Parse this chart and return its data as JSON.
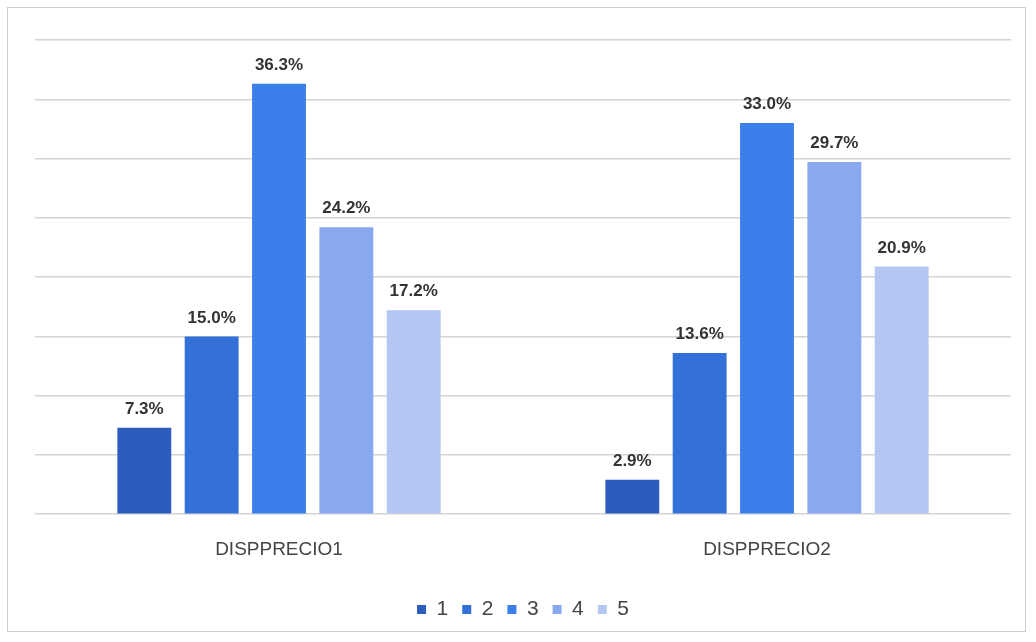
{
  "chart_data": {
    "type": "bar",
    "categories": [
      "DISPPRECIO1",
      "DISPPRECIO2"
    ],
    "series": [
      {
        "name": "1",
        "color": "#2d5cbf",
        "values": [
          7.3,
          2.9
        ],
        "value_labels": [
          "7.3%",
          "2.9%"
        ]
      },
      {
        "name": "2",
        "color": "#3371d8",
        "values": [
          15.0,
          13.6
        ],
        "value_labels": [
          "15.0%",
          "13.6%"
        ]
      },
      {
        "name": "3",
        "color": "#3b7fea",
        "values": [
          36.3,
          33.0
        ],
        "value_labels": [
          "36.3%",
          "33.0%"
        ]
      },
      {
        "name": "4",
        "color": "#89a8f0",
        "values": [
          24.2,
          29.7
        ],
        "value_labels": [
          "24.2%",
          "29.7%"
        ]
      },
      {
        "name": "5",
        "color": "#b5c6f3",
        "values": [
          17.2,
          20.9
        ],
        "value_labels": [
          "17.2%",
          "20.9%"
        ]
      }
    ],
    "ylim": [
      0,
      40
    ],
    "yticks": [
      {
        "value": 0,
        "label": null
      },
      {
        "value": 5,
        "label": null
      },
      {
        "value": 10,
        "label": null
      },
      {
        "value": 15,
        "label": null
      },
      {
        "value": 20,
        "label": null
      },
      {
        "value": 25,
        "label": null
      },
      {
        "value": 30,
        "label": null
      },
      {
        "value": 35,
        "label": null
      },
      {
        "value": 40,
        "label": null
      }
    ],
    "grid": "y",
    "legend": "bottom",
    "tick_labels": "x"
  }
}
